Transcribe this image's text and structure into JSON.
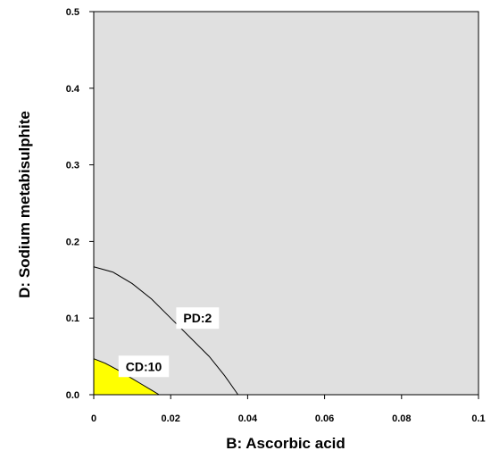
{
  "chart_data": {
    "type": "contour",
    "xlabel": "B: Ascorbic acid",
    "ylabel": "D: Sodium metabisulphite",
    "xlim": [
      0,
      0.1
    ],
    "ylim": [
      0,
      0.5
    ],
    "x_ticks": [
      "0",
      "0.02",
      "0.04",
      "0.06",
      "0.08",
      "0.1"
    ],
    "y_ticks": [
      "0.0",
      "0.1",
      "0.2",
      "0.3",
      "0.4",
      "0.5"
    ],
    "grid": false,
    "plot_background_color": "#e0e0e0",
    "highlight_color": "#ffff00",
    "contours": [
      {
        "label": "PD:2",
        "label_at": [
          0.027,
          0.1
        ],
        "points": [
          [
            0,
            0.167
          ],
          [
            0.005,
            0.16
          ],
          [
            0.01,
            0.145
          ],
          [
            0.015,
            0.125
          ],
          [
            0.02,
            0.1
          ],
          [
            0.025,
            0.075
          ],
          [
            0.03,
            0.05
          ],
          [
            0.034,
            0.025
          ],
          [
            0.0375,
            0
          ]
        ]
      },
      {
        "label": "CD:10",
        "label_at": [
          0.013,
          0.037
        ],
        "points": [
          [
            0,
            0.047
          ],
          [
            0.003,
            0.041
          ],
          [
            0.006,
            0.033
          ],
          [
            0.009,
            0.024
          ],
          [
            0.012,
            0.015
          ],
          [
            0.015,
            0.006
          ],
          [
            0.017,
            0
          ]
        ],
        "filled": true
      }
    ]
  }
}
